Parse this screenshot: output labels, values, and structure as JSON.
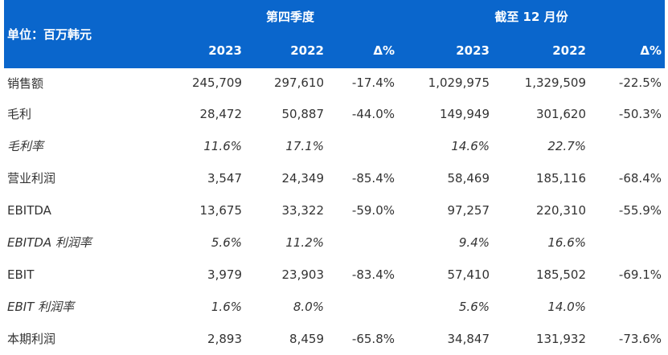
{
  "header": {
    "unit_label": "单位：百万韩元",
    "groups": [
      "第四季度",
      "截至 12 月份"
    ],
    "columns": [
      "2023",
      "2022",
      "Δ%",
      "2023",
      "2022",
      "Δ%"
    ]
  },
  "rows": [
    {
      "label": "销售额",
      "values": [
        "245,709",
        "297,610",
        "-17.4%",
        "1,029,975",
        "1,329,509",
        "-22.5%"
      ]
    },
    {
      "label": "毛利",
      "values": [
        "28,472",
        "50,887",
        "-44.0%",
        "149,949",
        "301,620",
        "-50.3%"
      ]
    },
    {
      "label": "毛利率",
      "values": [
        "11.6%",
        "17.1%",
        "",
        "14.6%",
        "22.7%",
        ""
      ],
      "italic": true
    },
    {
      "label": "营业利润",
      "values": [
        "3,547",
        "24,349",
        "-85.4%",
        "58,469",
        "185,116",
        "-68.4%"
      ]
    },
    {
      "label": "EBITDA",
      "values": [
        "13,675",
        "33,322",
        "-59.0%",
        "97,257",
        "220,310",
        "-55.9%"
      ]
    },
    {
      "label": "EBITDA 利润率",
      "values": [
        "5.6%",
        "11.2%",
        "",
        "9.4%",
        "16.6%",
        ""
      ],
      "italic": true
    },
    {
      "label": "EBIT",
      "values": [
        "3,979",
        "23,903",
        "-83.4%",
        "57,410",
        "185,502",
        "-69.1%"
      ]
    },
    {
      "label": "EBIT 利润率",
      "values": [
        "1.6%",
        "8.0%",
        "",
        "5.6%",
        "14.0%",
        ""
      ],
      "italic": true
    },
    {
      "label": "本期利润",
      "values": [
        "2,893",
        "8,459",
        "-65.8%",
        "34,847",
        "131,932",
        "-73.6%"
      ]
    }
  ],
  "colors": {
    "header_bg": "#0a66cc",
    "header_text": "#ffffff",
    "body_text": "#333333"
  }
}
